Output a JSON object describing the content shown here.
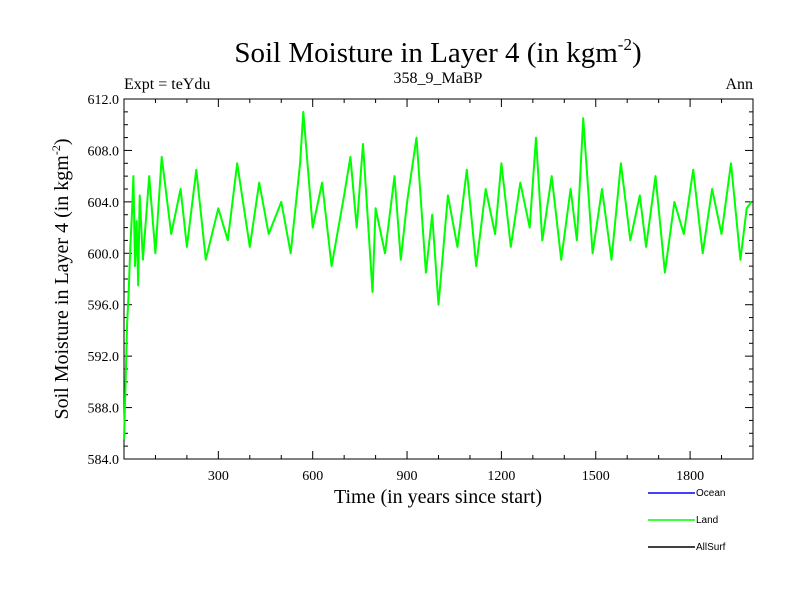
{
  "chart_data": {
    "type": "line",
    "title": "Soil Moisture in Layer 4 (in kgm",
    "title_sup": "-2",
    "title_end": ")",
    "subtitle_left": "Expt = teYdu",
    "subtitle_center": "358_9_MaBP",
    "subtitle_right": "Ann",
    "xlabel": "Time (in years since start)",
    "ylabel": "Soil Moisture in Layer 4 (in kgm",
    "ylabel_sup": "-2",
    "ylabel_end": ")",
    "xlim": [
      0,
      2000
    ],
    "ylim": [
      584.0,
      612.0
    ],
    "x_ticks": [
      300,
      600,
      900,
      1200,
      1500,
      1800
    ],
    "x_tick_labels": [
      "300",
      "600",
      "900",
      "1200",
      "1500",
      "1800"
    ],
    "y_ticks": [
      584,
      588,
      592,
      596,
      600,
      604,
      608,
      612
    ],
    "y_tick_labels": [
      "584.0",
      "588.0",
      "592.0",
      "596.0",
      "600.0",
      "604.0",
      "608.0",
      "612.0"
    ],
    "legend_position": "bottom-right",
    "series": [
      {
        "name": "Ocean",
        "color": "#0000ff",
        "values": []
      },
      {
        "name": "Land",
        "color": "#00ff00",
        "x": [
          0,
          5,
          10,
          15,
          20,
          25,
          30,
          35,
          40,
          45,
          50,
          60,
          80,
          100,
          120,
          150,
          180,
          200,
          230,
          260,
          300,
          330,
          360,
          400,
          430,
          460,
          500,
          530,
          560,
          570,
          600,
          630,
          660,
          700,
          720,
          740,
          760,
          790,
          800,
          830,
          860,
          880,
          900,
          930,
          960,
          980,
          1000,
          1030,
          1060,
          1090,
          1120,
          1150,
          1180,
          1200,
          1230,
          1260,
          1290,
          1310,
          1330,
          1360,
          1390,
          1420,
          1440,
          1460,
          1490,
          1520,
          1550,
          1580,
          1610,
          1640,
          1660,
          1690,
          1720,
          1750,
          1780,
          1810,
          1840,
          1870,
          1900,
          1930,
          1960,
          1980,
          1995
        ],
        "values": [
          585.5,
          590.0,
          594.5,
          597.0,
          600.5,
          603.0,
          606.0,
          599.0,
          602.5,
          597.5,
          604.5,
          599.5,
          606.0,
          600.0,
          607.5,
          601.5,
          605.0,
          600.5,
          606.5,
          599.5,
          603.5,
          601.0,
          607.0,
          600.5,
          605.5,
          601.5,
          604.0,
          600.0,
          607.0,
          611.0,
          602.0,
          605.5,
          599.0,
          604.5,
          607.5,
          602.0,
          608.5,
          597.0,
          603.5,
          600.0,
          606.0,
          599.5,
          604.0,
          609.0,
          598.5,
          603.0,
          596.0,
          604.5,
          600.5,
          606.5,
          599.0,
          605.0,
          601.5,
          607.0,
          600.5,
          605.5,
          602.0,
          609.0,
          601.0,
          606.0,
          599.5,
          605.0,
          601.0,
          610.5,
          600.0,
          605.0,
          599.5,
          607.0,
          601.0,
          604.5,
          600.5,
          606.0,
          598.5,
          604.0,
          601.5,
          606.5,
          600.0,
          605.0,
          601.5,
          607.0,
          599.5,
          603.5,
          604.0
        ]
      },
      {
        "name": "AllSurf",
        "color": "#000000",
        "values": []
      }
    ]
  }
}
